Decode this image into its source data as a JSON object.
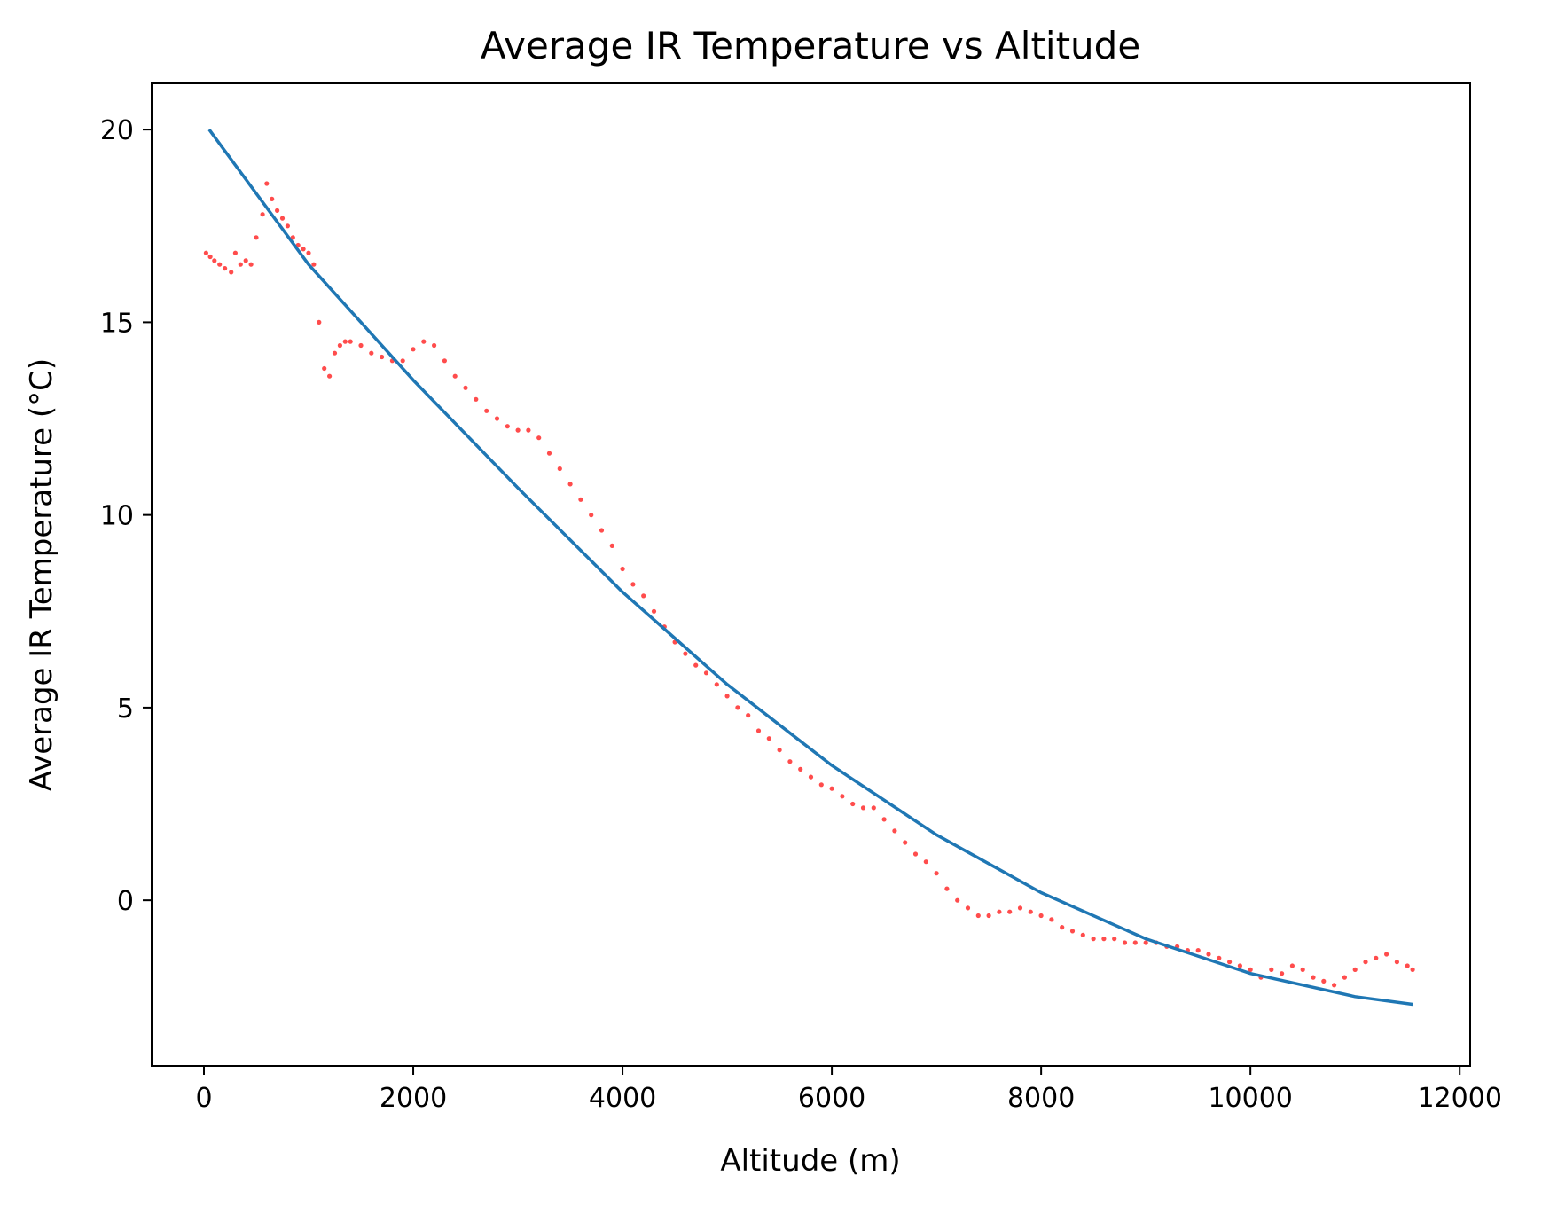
{
  "chart_data": {
    "type": "scatter",
    "title": "Average IR Temperature vs Altitude",
    "xlabel": "Altitude (m)",
    "ylabel": "Average IR Temperature (°C)",
    "xlim": [
      -500,
      12100
    ],
    "ylim": [
      -4.3,
      21.2
    ],
    "xticks": [
      0,
      2000,
      4000,
      6000,
      8000,
      10000,
      12000
    ],
    "yticks": [
      0,
      5,
      10,
      15,
      20
    ],
    "grid": false,
    "legend": "none",
    "colors": {
      "points": "#ff0000",
      "fit": "#1f77b4"
    },
    "series": [
      {
        "kind": "scatter",
        "color": "#ff0000",
        "points": [
          [
            20,
            16.8
          ],
          [
            60,
            16.7
          ],
          [
            100,
            16.6
          ],
          [
            150,
            16.5
          ],
          [
            200,
            16.4
          ],
          [
            260,
            16.3
          ],
          [
            300,
            16.8
          ],
          [
            350,
            16.5
          ],
          [
            400,
            16.6
          ],
          [
            450,
            16.5
          ],
          [
            500,
            17.2
          ],
          [
            560,
            17.8
          ],
          [
            600,
            18.6
          ],
          [
            650,
            18.2
          ],
          [
            700,
            17.9
          ],
          [
            750,
            17.7
          ],
          [
            800,
            17.5
          ],
          [
            850,
            17.2
          ],
          [
            900,
            17.0
          ],
          [
            950,
            16.9
          ],
          [
            1000,
            16.8
          ],
          [
            1050,
            16.5
          ],
          [
            1100,
            15.0
          ],
          [
            1150,
            13.8
          ],
          [
            1200,
            13.6
          ],
          [
            1250,
            14.2
          ],
          [
            1300,
            14.4
          ],
          [
            1350,
            14.5
          ],
          [
            1400,
            14.5
          ],
          [
            1500,
            14.4
          ],
          [
            1600,
            14.2
          ],
          [
            1700,
            14.1
          ],
          [
            1800,
            14.0
          ],
          [
            1900,
            14.0
          ],
          [
            2000,
            14.3
          ],
          [
            2100,
            14.5
          ],
          [
            2200,
            14.4
          ],
          [
            2300,
            14.0
          ],
          [
            2400,
            13.6
          ],
          [
            2500,
            13.3
          ],
          [
            2600,
            13.0
          ],
          [
            2700,
            12.7
          ],
          [
            2800,
            12.5
          ],
          [
            2900,
            12.3
          ],
          [
            3000,
            12.2
          ],
          [
            3100,
            12.2
          ],
          [
            3200,
            12.0
          ],
          [
            3300,
            11.6
          ],
          [
            3400,
            11.2
          ],
          [
            3500,
            10.8
          ],
          [
            3600,
            10.4
          ],
          [
            3700,
            10.0
          ],
          [
            3800,
            9.6
          ],
          [
            3900,
            9.2
          ],
          [
            4000,
            8.6
          ],
          [
            4100,
            8.2
          ],
          [
            4200,
            7.9
          ],
          [
            4300,
            7.5
          ],
          [
            4400,
            7.1
          ],
          [
            4500,
            6.7
          ],
          [
            4600,
            6.4
          ],
          [
            4700,
            6.1
          ],
          [
            4800,
            5.9
          ],
          [
            4900,
            5.6
          ],
          [
            5000,
            5.3
          ],
          [
            5100,
            5.0
          ],
          [
            5200,
            4.8
          ],
          [
            5300,
            4.4
          ],
          [
            5400,
            4.2
          ],
          [
            5500,
            3.9
          ],
          [
            5600,
            3.6
          ],
          [
            5700,
            3.4
          ],
          [
            5800,
            3.2
          ],
          [
            5900,
            3.0
          ],
          [
            6000,
            2.9
          ],
          [
            6100,
            2.7
          ],
          [
            6200,
            2.5
          ],
          [
            6300,
            2.4
          ],
          [
            6400,
            2.4
          ],
          [
            6500,
            2.1
          ],
          [
            6600,
            1.8
          ],
          [
            6700,
            1.5
          ],
          [
            6800,
            1.2
          ],
          [
            6900,
            1.0
          ],
          [
            7000,
            0.7
          ],
          [
            7100,
            0.3
          ],
          [
            7200,
            0.0
          ],
          [
            7300,
            -0.2
          ],
          [
            7400,
            -0.4
          ],
          [
            7500,
            -0.4
          ],
          [
            7600,
            -0.3
          ],
          [
            7700,
            -0.3
          ],
          [
            7800,
            -0.2
          ],
          [
            7900,
            -0.3
          ],
          [
            8000,
            -0.4
          ],
          [
            8100,
            -0.5
          ],
          [
            8200,
            -0.7
          ],
          [
            8300,
            -0.8
          ],
          [
            8400,
            -0.9
          ],
          [
            8500,
            -1.0
          ],
          [
            8600,
            -1.0
          ],
          [
            8700,
            -1.0
          ],
          [
            8800,
            -1.1
          ],
          [
            8900,
            -1.1
          ],
          [
            9000,
            -1.1
          ],
          [
            9100,
            -1.1
          ],
          [
            9200,
            -1.2
          ],
          [
            9300,
            -1.2
          ],
          [
            9400,
            -1.3
          ],
          [
            9500,
            -1.3
          ],
          [
            9600,
            -1.4
          ],
          [
            9700,
            -1.5
          ],
          [
            9800,
            -1.6
          ],
          [
            9900,
            -1.7
          ],
          [
            10000,
            -1.8
          ],
          [
            10100,
            -2.0
          ],
          [
            10200,
            -1.8
          ],
          [
            10300,
            -1.9
          ],
          [
            10400,
            -1.7
          ],
          [
            10500,
            -1.8
          ],
          [
            10600,
            -2.0
          ],
          [
            10700,
            -2.1
          ],
          [
            10800,
            -2.2
          ],
          [
            10900,
            -2.0
          ],
          [
            11000,
            -1.8
          ],
          [
            11100,
            -1.6
          ],
          [
            11200,
            -1.5
          ],
          [
            11300,
            -1.4
          ],
          [
            11400,
            -1.6
          ],
          [
            11500,
            -1.7
          ],
          [
            11550,
            -1.8
          ]
        ]
      },
      {
        "kind": "line",
        "color": "#1f77b4",
        "x": [
          50,
          1000,
          2000,
          3000,
          4000,
          5000,
          6000,
          7000,
          8000,
          9000,
          10000,
          11000,
          11550
        ],
        "y": [
          20.0,
          16.5,
          13.5,
          10.7,
          8.0,
          5.6,
          3.5,
          1.7,
          0.2,
          -1.0,
          -1.9,
          -2.5,
          -2.7
        ]
      }
    ]
  }
}
